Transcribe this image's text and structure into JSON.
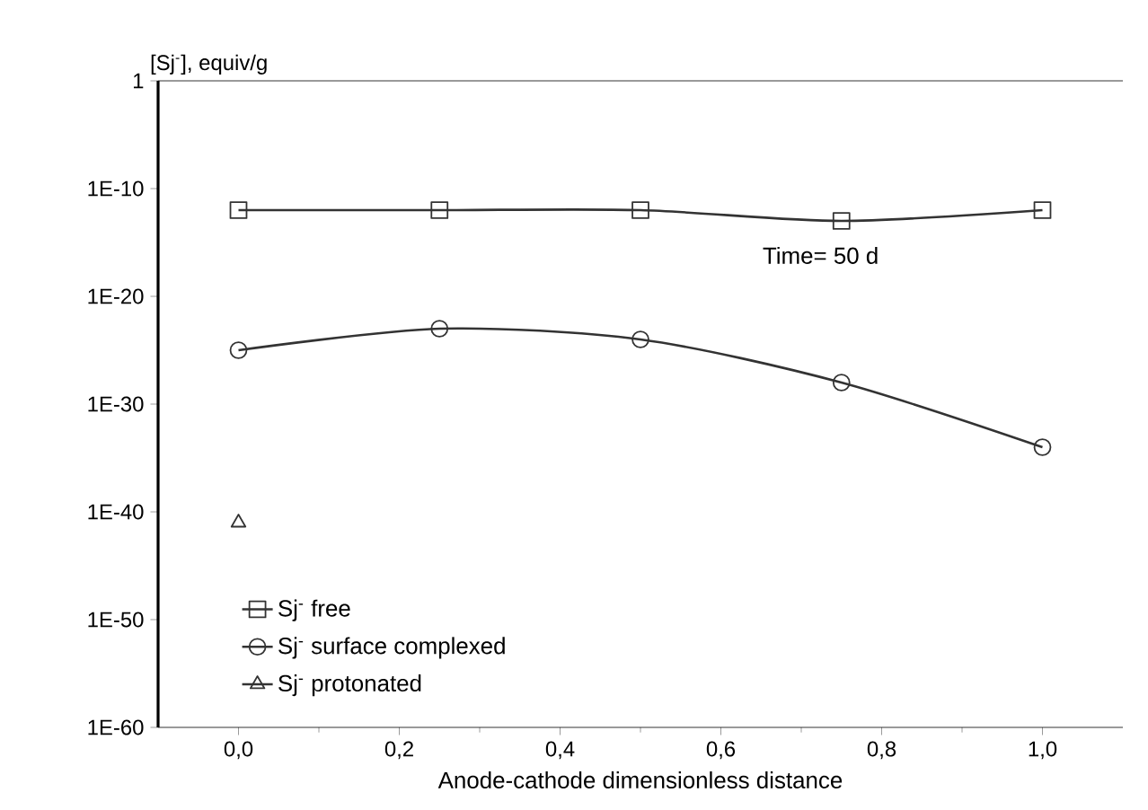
{
  "chart_data": {
    "type": "line",
    "ylabel": "[Sj$^{-}$], equiv/g",
    "xlabel": "Anode-cathode dimensionless distance",
    "annotations": [
      "Time= 50 d"
    ],
    "log": true,
    "legend": "bottom left",
    "grid": false,
    "line_style": "solid",
    "xlim": [
      -0.1,
      1.1
    ],
    "xticks": [
      {
        "value": 0,
        "label": "0,0"
      },
      {
        "value": 0.2,
        "label": "0,2"
      },
      {
        "value": 0.4,
        "label": "0,4"
      },
      {
        "value": 0.6,
        "label": "0,6"
      },
      {
        "value": 0.8,
        "label": "0,8"
      },
      {
        "value": 1,
        "label": "1,0"
      }
    ],
    "ylim": [
      1e-60,
      1
    ],
    "yticks": [
      {
        "value": 1e-60,
        "label": "1E-60"
      },
      {
        "value": 1e-50,
        "label": "1E-50"
      },
      {
        "value": 1e-40,
        "label": "1E-40"
      },
      {
        "value": 1e-30,
        "label": "1E-30"
      },
      {
        "value": 1e-20,
        "label": "1E-20"
      },
      {
        "value": 1e-10,
        "label": "1E-10"
      },
      1
    ],
    "series": [
      {
        "name": "Sj$^{-}$ free",
        "color": "#333333",
        "marker": "square",
        "x": [
          0,
          0.25,
          0.5,
          0.75,
          1
        ],
        "values": [
          1e-12,
          1e-12,
          1e-12,
          1e-13,
          1e-12
        ]
      },
      {
        "name": "Sj$^{-}$ surface complexed",
        "color": "#333333",
        "marker": "circle",
        "x": [
          0,
          0.25,
          0.5,
          0.75,
          1
        ],
        "values": [
          1e-25,
          1e-23,
          1e-24,
          1e-28,
          1e-34
        ]
      },
      {
        "name": "Sj$^{-}$ protonated",
        "color": "#333333",
        "marker": "triangle",
        "x": [
          0
        ],
        "values": [
          1e-41
        ]
      }
    ]
  }
}
